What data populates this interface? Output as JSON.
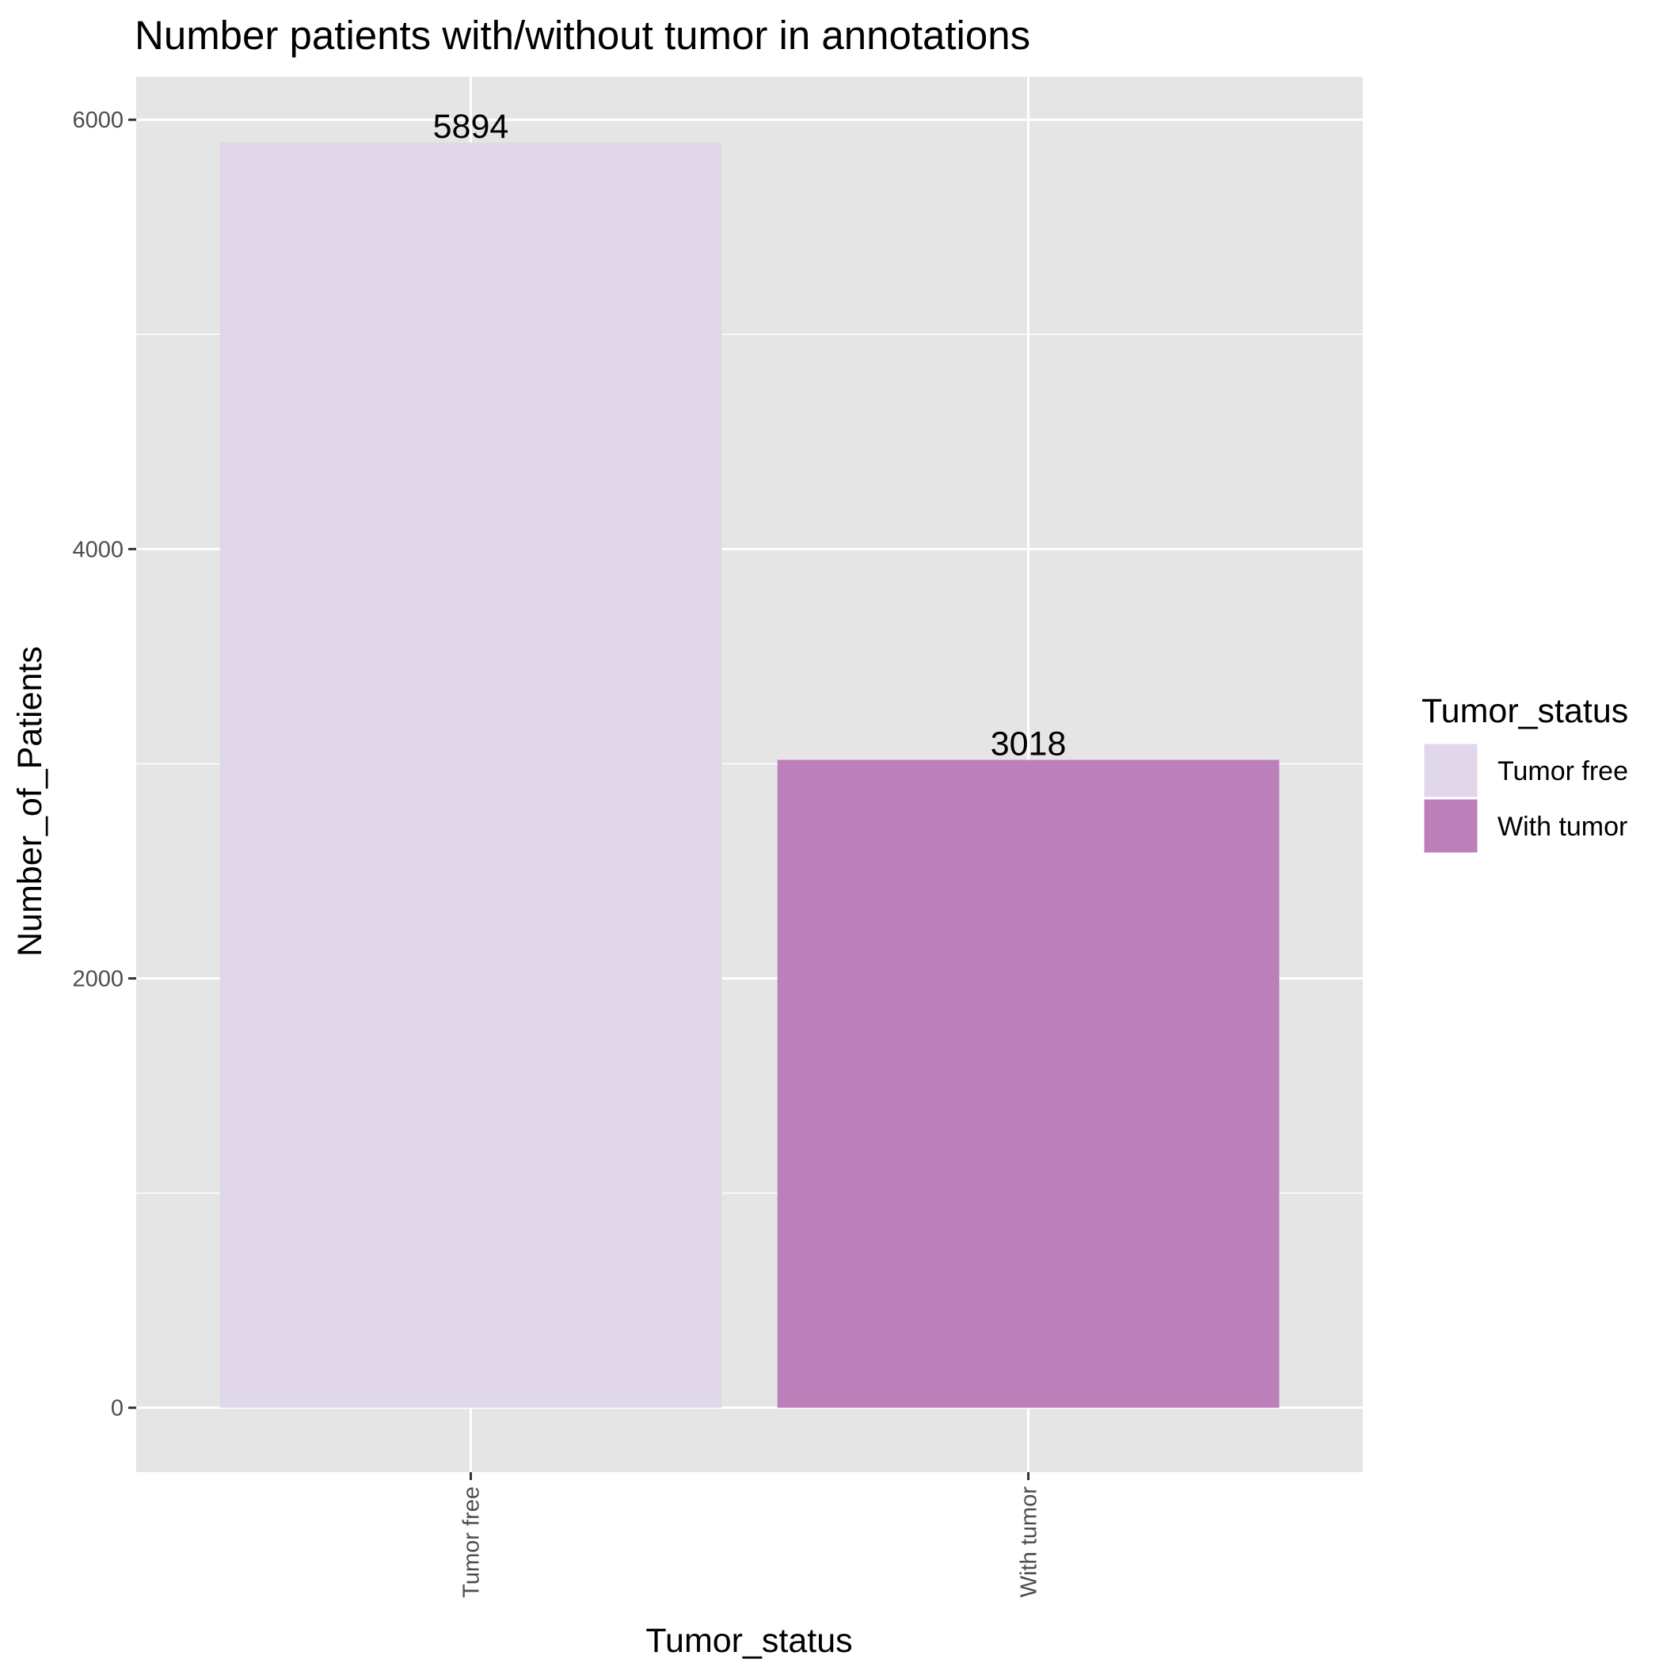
{
  "chart_data": {
    "type": "bar",
    "title": "Number patients with/without tumor in annotations",
    "xlabel": "Tumor_status",
    "ylabel": "Number_of_Patients",
    "categories": [
      "Tumor free",
      "With tumor"
    ],
    "values": [
      5894,
      3018
    ],
    "data_labels": [
      "5894",
      "3018"
    ],
    "colors": [
      "#e0d7ea",
      "#bc7fba"
    ],
    "ylim": [
      -300,
      6200
    ],
    "yticks": [
      0,
      2000,
      4000,
      6000
    ],
    "ytick_labels": [
      "0",
      "2000",
      "4000",
      "6000"
    ],
    "panel_background": "#e5e5e5",
    "grid_color": "#ffffff",
    "grid": true,
    "legend": {
      "title": "Tumor_status",
      "placement": "right",
      "entries": [
        "Tumor free",
        "With tumor"
      ]
    }
  }
}
